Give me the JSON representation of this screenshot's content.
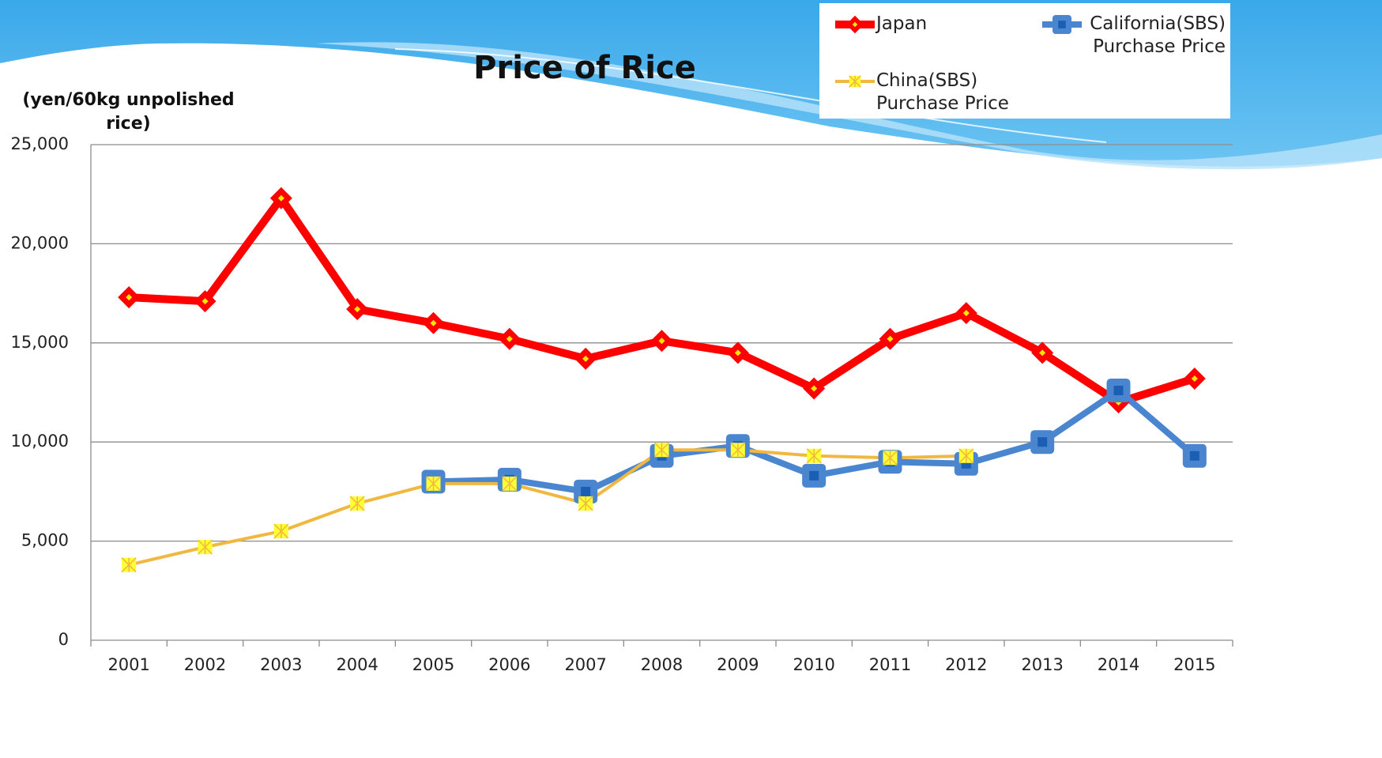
{
  "chart_data": {
    "type": "line",
    "title": "Price of Rice",
    "y_label": "(yen/60kg unpolished rice)",
    "categories": [
      "2001",
      "2002",
      "2003",
      "2004",
      "2005",
      "2006",
      "2007",
      "2008",
      "2009",
      "2010",
      "2011",
      "2012",
      "2013",
      "2014",
      "2015"
    ],
    "series": [
      {
        "name": "Japan",
        "color": "#ff0000",
        "marker": "diamond",
        "values": [
          17300,
          17100,
          22300,
          16700,
          16000,
          15200,
          14200,
          15100,
          14500,
          12700,
          15200,
          16500,
          14500,
          12000,
          13200
        ]
      },
      {
        "name": "California(SBS) Purchase Price",
        "color": "#4a86d0",
        "marker": "square",
        "values": [
          null,
          null,
          null,
          null,
          8000,
          8100,
          7500,
          9300,
          9800,
          8300,
          9000,
          8900,
          10000,
          12600,
          9300
        ]
      },
      {
        "name": "China(SBS) Purchase Price",
        "color": "#f0b840",
        "marker": "star",
        "values": [
          3800,
          4700,
          5500,
          6900,
          7900,
          7900,
          6900,
          9600,
          9600,
          9300,
          9200,
          9300,
          null,
          null,
          null
        ]
      }
    ],
    "ylim": [
      0,
      25000
    ],
    "yticks": [
      0,
      {
        "value": 5000,
        "label": "5,000"
      },
      {
        "value": 10000,
        "label": "10,000"
      },
      {
        "value": 15000,
        "label": "15,000"
      },
      {
        "value": 20000,
        "label": "20,000"
      },
      {
        "value": 25000,
        "label": "25,000"
      }
    ],
    "grid": true,
    "legend_position": "top-right"
  }
}
